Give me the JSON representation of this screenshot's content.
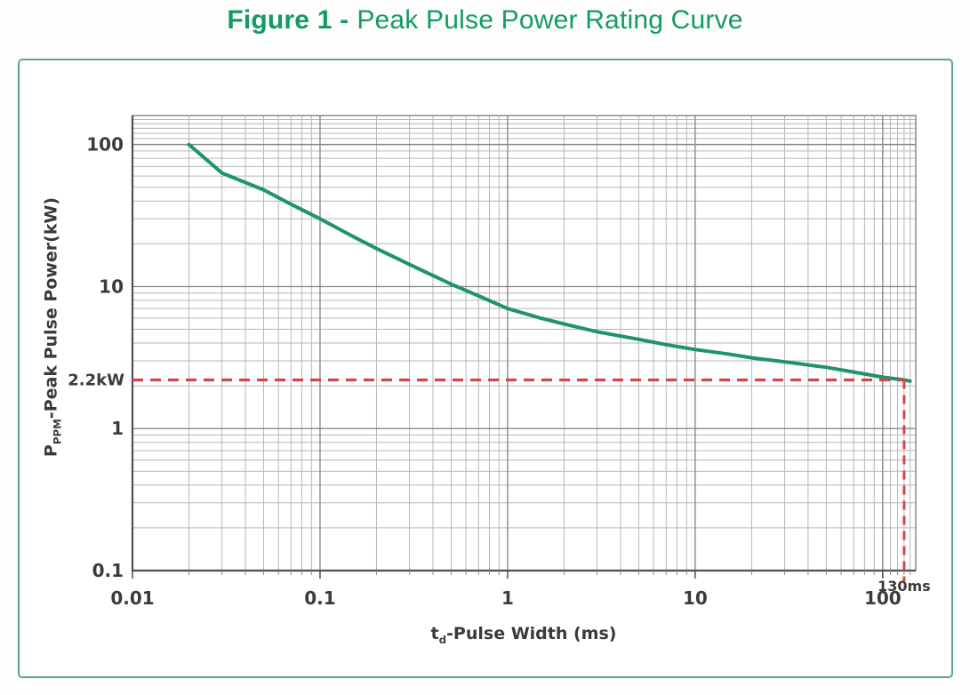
{
  "colors": {
    "title_green": "#149a67",
    "border_teal": "#5aa492",
    "curve_green": "#1f936b",
    "annotation_red": "#d64545",
    "tick_text": "#3b3b3b"
  },
  "chart_data": {
    "type": "line",
    "title": "Figure 1 - Peak Pulse Power Rating Curve",
    "title_prefix": "Figure 1 -",
    "title_rest": "Peak Pulse Power Rating Curve",
    "x_scale": "log",
    "y_scale": "log",
    "xlim": [
      0.01,
      150
    ],
    "ylim": [
      0.1,
      160
    ],
    "xlabel": {
      "main": "t",
      "sub": "d",
      "rest": "-Pulse Width (ms)"
    },
    "ylabel": {
      "main": "P",
      "sub": "PPM",
      "rest": "-Peak Pulse Power(kW)"
    },
    "x_ticks": [
      {
        "v": 0.01,
        "label": "0.01"
      },
      {
        "v": 0.1,
        "label": "0.1"
      },
      {
        "v": 1,
        "label": "1"
      },
      {
        "v": 10,
        "label": "10"
      },
      {
        "v": 100,
        "label": "100"
      }
    ],
    "y_ticks": [
      {
        "v": 0.1,
        "label": "0.1"
      },
      {
        "v": 1,
        "label": "1"
      },
      {
        "v": 10,
        "label": "10"
      },
      {
        "v": 100,
        "label": "100"
      }
    ],
    "grid": {
      "minor_color": "#b6b6b6",
      "major_color": "#8a8a8a",
      "frame_color": "#828282",
      "axis_color": "#4f4f4f"
    },
    "series": [
      {
        "name": "peak_pulse_power_rating_curve",
        "color": "#1f936b",
        "width": 4,
        "points": [
          [
            0.02,
            100
          ],
          [
            0.03,
            63
          ],
          [
            0.05,
            48
          ],
          [
            0.07,
            38
          ],
          [
            0.1,
            30
          ],
          [
            0.15,
            22.5
          ],
          [
            0.2,
            18.5
          ],
          [
            0.3,
            14.3
          ],
          [
            0.5,
            10.4
          ],
          [
            0.7,
            8.6
          ],
          [
            1,
            7.0
          ],
          [
            1.5,
            6.0
          ],
          [
            2,
            5.45
          ],
          [
            3,
            4.8
          ],
          [
            5,
            4.25
          ],
          [
            7,
            3.9
          ],
          [
            10,
            3.6
          ],
          [
            15,
            3.35
          ],
          [
            20,
            3.15
          ],
          [
            30,
            2.95
          ],
          [
            50,
            2.7
          ],
          [
            70,
            2.5
          ],
          [
            100,
            2.3
          ],
          [
            130,
            2.2
          ],
          [
            140,
            2.16
          ]
        ]
      }
    ],
    "annotations": [
      {
        "type": "hline",
        "y": 2.2,
        "x_end": 130,
        "label": "2.2kW",
        "color": "#d64545"
      },
      {
        "type": "vline",
        "x": 130,
        "y_start": 2.2,
        "label": "130ms",
        "color": "#d64545"
      }
    ]
  }
}
